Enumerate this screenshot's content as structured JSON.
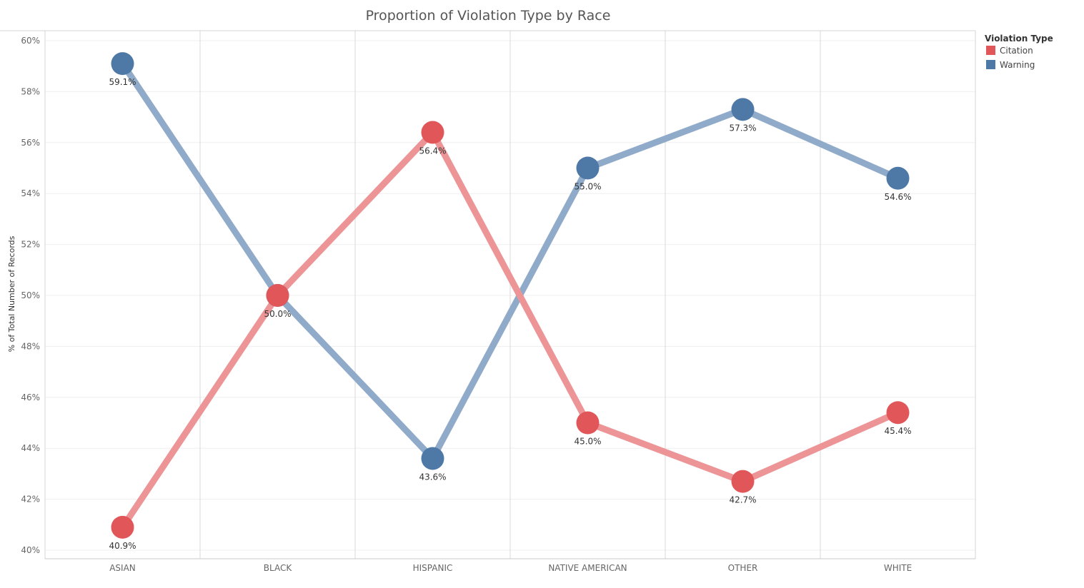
{
  "chart_data": {
    "type": "line",
    "title": "Proportion of Violation Type by Race",
    "xlabel": "",
    "ylabel": "% of Total Number of Records",
    "categories": [
      "ASIAN",
      "BLACK",
      "HISPANIC",
      "NATIVE AMERICAN",
      "OTHER",
      "WHITE"
    ],
    "series": [
      {
        "name": "Warning",
        "color": "#4e79a7",
        "line_color": "#8fabc9",
        "values": [
          59.1,
          50.0,
          43.6,
          55.0,
          57.3,
          54.6
        ]
      },
      {
        "name": "Citation",
        "color": "#e15759",
        "line_color": "#ed9496",
        "values": [
          40.9,
          50.0,
          56.4,
          45.0,
          42.7,
          45.4
        ]
      }
    ],
    "data_labels": [
      {
        "series": "Warning",
        "category": "ASIAN",
        "text": "59.1%"
      },
      {
        "series": "Citation",
        "category": "ASIAN",
        "text": "40.9%"
      },
      {
        "series": "Citation",
        "category": "BLACK",
        "text": "50.0%"
      },
      {
        "series": "Citation",
        "category": "HISPANIC",
        "text": "56.4%"
      },
      {
        "series": "Warning",
        "category": "HISPANIC",
        "text": "43.6%"
      },
      {
        "series": "Warning",
        "category": "NATIVE AMERICAN",
        "text": "55.0%"
      },
      {
        "series": "Citation",
        "category": "NATIVE AMERICAN",
        "text": "45.0%"
      },
      {
        "series": "Warning",
        "category": "OTHER",
        "text": "57.3%"
      },
      {
        "series": "Citation",
        "category": "OTHER",
        "text": "42.7%"
      },
      {
        "series": "Warning",
        "category": "WHITE",
        "text": "54.6%"
      },
      {
        "series": "Citation",
        "category": "WHITE",
        "text": "45.4%"
      }
    ],
    "ylim": [
      40,
      60
    ],
    "yticks": [
      "40%",
      "42%",
      "44%",
      "46%",
      "48%",
      "50%",
      "52%",
      "54%",
      "56%",
      "58%",
      "60%"
    ],
    "grid": true,
    "legend": {
      "title": "Violation Type",
      "placement": "top-right",
      "entries": [
        "Citation",
        "Warning"
      ]
    }
  }
}
